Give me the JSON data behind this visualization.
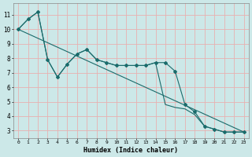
{
  "xlabel": "Humidex (Indice chaleur)",
  "background_color": "#cce8e8",
  "grid_color": "#e8b0b0",
  "line_color": "#1a6b6b",
  "xlim": [
    -0.5,
    23.5
  ],
  "ylim": [
    2.5,
    11.8
  ],
  "yticks": [
    3,
    4,
    5,
    6,
    7,
    8,
    9,
    10,
    11
  ],
  "xticks": [
    0,
    1,
    2,
    3,
    4,
    5,
    6,
    7,
    8,
    9,
    10,
    11,
    12,
    13,
    14,
    15,
    16,
    17,
    18,
    19,
    20,
    21,
    22,
    23
  ],
  "line1_x": [
    0,
    1,
    2,
    3,
    4,
    5,
    6,
    7,
    8,
    9,
    10,
    11,
    12,
    13,
    14,
    15,
    16,
    17,
    18,
    19,
    20,
    21,
    22,
    23
  ],
  "line1_y": [
    10.0,
    10.7,
    11.2,
    7.9,
    6.7,
    7.6,
    8.3,
    8.6,
    7.9,
    7.7,
    7.5,
    7.5,
    7.5,
    7.5,
    7.7,
    7.7,
    7.1,
    4.8,
    4.3,
    3.3,
    3.1,
    2.9,
    2.9,
    2.9
  ],
  "line2_x": [
    0,
    1,
    2,
    3,
    4,
    5,
    6,
    7,
    8,
    9,
    10,
    11,
    12,
    13,
    14,
    15,
    16,
    17,
    18,
    19,
    20,
    21,
    22,
    23
  ],
  "line2_y": [
    10.0,
    10.7,
    11.2,
    7.9,
    6.7,
    7.6,
    8.3,
    8.6,
    7.9,
    7.7,
    7.5,
    7.5,
    7.5,
    7.5,
    7.7,
    4.8,
    4.6,
    4.5,
    4.1,
    3.3,
    3.1,
    2.9,
    2.9,
    2.9
  ],
  "line3_x": [
    0,
    23
  ],
  "line3_y": [
    10.0,
    2.9
  ],
  "marker_x": [
    0,
    1,
    2,
    3,
    4,
    5,
    6,
    7,
    8,
    9,
    10,
    11,
    12,
    13,
    14,
    15,
    16,
    17,
    18,
    19,
    20,
    21,
    22,
    23
  ],
  "marker_y": [
    10.0,
    10.7,
    11.2,
    7.9,
    6.7,
    7.6,
    8.3,
    8.6,
    7.9,
    7.7,
    7.5,
    7.5,
    7.5,
    7.5,
    7.7,
    7.7,
    7.1,
    4.8,
    4.3,
    3.3,
    3.1,
    2.9,
    2.9,
    2.9
  ]
}
